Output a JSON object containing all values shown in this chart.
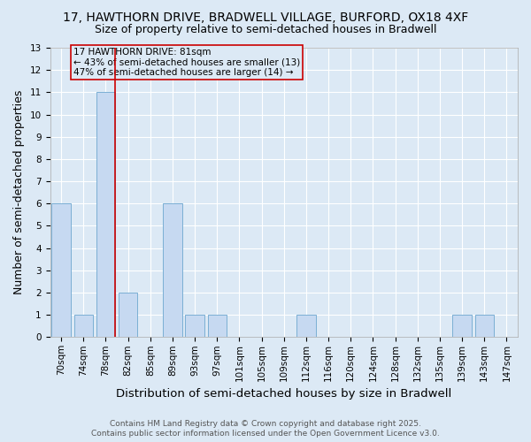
{
  "title": "17, HAWTHORN DRIVE, BRADWELL VILLAGE, BURFORD, OX18 4XF",
  "subtitle": "Size of property relative to semi-detached houses in Bradwell",
  "xlabel": "Distribution of semi-detached houses by size in Bradwell",
  "ylabel": "Number of semi-detached properties",
  "categories": [
    "70sqm",
    "74sqm",
    "78sqm",
    "82sqm",
    "85sqm",
    "89sqm",
    "93sqm",
    "97sqm",
    "101sqm",
    "105sqm",
    "109sqm",
    "112sqm",
    "116sqm",
    "120sqm",
    "124sqm",
    "128sqm",
    "132sqm",
    "135sqm",
    "139sqm",
    "143sqm",
    "147sqm"
  ],
  "values": [
    6,
    1,
    11,
    2,
    0,
    6,
    1,
    1,
    0,
    0,
    0,
    1,
    0,
    0,
    0,
    0,
    0,
    0,
    1,
    1,
    0
  ],
  "bar_color": "#c6d9f1",
  "bar_edge_color": "#7bafd4",
  "highlight_index": 2,
  "highlight_line_color": "#cc0000",
  "annotation_text": "17 HAWTHORN DRIVE: 81sqm\n← 43% of semi-detached houses are smaller (13)\n47% of semi-detached houses are larger (14) →",
  "annotation_box_color": "#cc0000",
  "ylim": [
    0,
    13
  ],
  "yticks": [
    0,
    1,
    2,
    3,
    4,
    5,
    6,
    7,
    8,
    9,
    10,
    11,
    12,
    13
  ],
  "footnote1": "Contains HM Land Registry data © Crown copyright and database right 2025.",
  "footnote2": "Contains public sector information licensed under the Open Government Licence v3.0.",
  "background_color": "#dce9f5",
  "grid_color": "#ffffff",
  "title_fontsize": 10,
  "subtitle_fontsize": 9,
  "axis_label_fontsize": 9,
  "tick_fontsize": 7.5,
  "annotation_fontsize": 7.5,
  "footnote_fontsize": 6.5
}
